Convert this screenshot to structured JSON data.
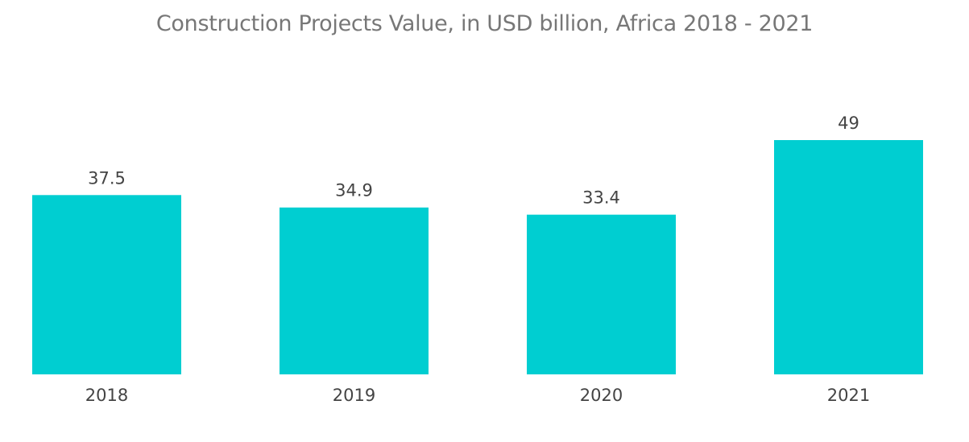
{
  "chart_data": {
    "type": "bar",
    "title": "Construction Projects Value, in USD billion, Africa 2018 - 2021",
    "categories": [
      "2018",
      "2019",
      "2020",
      "2021"
    ],
    "values": [
      37.5,
      34.9,
      33.4,
      49
    ],
    "value_labels": [
      "37.5",
      "34.9",
      "33.4",
      "49"
    ],
    "xlabel": "",
    "ylabel": "",
    "ylim": [
      0,
      49
    ],
    "grid": false,
    "legend": "none",
    "bar_color": "#00CED1"
  }
}
